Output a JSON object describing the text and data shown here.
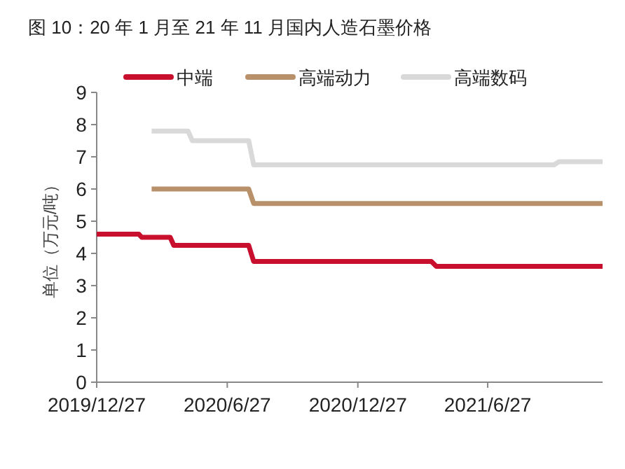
{
  "chart_data": {
    "type": "line",
    "title": "图 10：20 年 1 月至 21 年 11 月国内人造石墨价格",
    "ylabel": "单位（万元/吨）",
    "series": [
      {
        "name": "中端",
        "color": "#c8102e",
        "x": [
          "2019-12-27",
          "2020-02-24",
          "2020-02-28",
          "2020-04-08",
          "2020-04-13",
          "2020-07-27",
          "2020-08-03",
          "2021-04-09",
          "2021-04-16",
          "2021-12-05"
        ],
        "values": [
          4.6,
          4.6,
          4.5,
          4.5,
          4.25,
          4.25,
          3.75,
          3.75,
          3.6,
          3.6
        ]
      },
      {
        "name": "高端动力",
        "color": "#b8916a",
        "x": [
          "2020-03-13",
          "2020-07-27",
          "2020-08-03",
          "2021-12-05"
        ],
        "values": [
          6.0,
          6.0,
          5.55,
          5.55
        ]
      },
      {
        "name": "高端数码",
        "color": "#d9d9d9",
        "x": [
          "2020-03-13",
          "2020-05-03",
          "2020-05-09",
          "2020-07-27",
          "2020-08-03",
          "2021-09-28",
          "2021-10-05",
          "2021-12-05"
        ],
        "values": [
          7.8,
          7.8,
          7.5,
          7.5,
          6.75,
          6.75,
          6.85,
          6.85
        ]
      }
    ],
    "xlim": [
      "2019-12-27",
      "2021-12-05"
    ],
    "xticks": [
      {
        "value": "2019-12-27",
        "label": "2019/12/27"
      },
      {
        "value": "2020-06-27",
        "label": "2020/6/27"
      },
      {
        "value": "2020-12-27",
        "label": "2020/12/27"
      },
      {
        "value": "2021-06-27",
        "label": "2021/6/27"
      }
    ],
    "ylim": [
      0,
      9
    ],
    "yticks": [
      0,
      1,
      2,
      3,
      4,
      5,
      6,
      7,
      8,
      9
    ],
    "grid": false,
    "legend": "top",
    "marker": "none",
    "line_style": "solid"
  }
}
